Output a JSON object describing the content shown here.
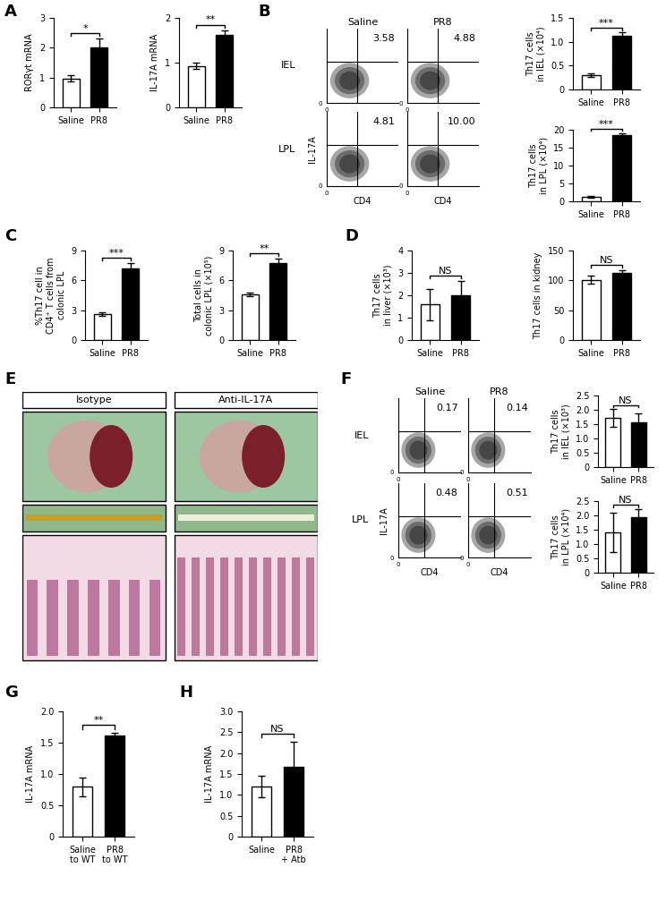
{
  "chart_data": {
    "type": "multi_panel",
    "panels": [
      {
        "label": "A",
        "bar_charts": [
          {
            "type": "bar",
            "y_label": "RORγt mRNA",
            "categories": [
              "Saline",
              "PR8"
            ],
            "values": [
              0.97,
              2.0
            ],
            "errors": [
              0.1,
              0.32
            ],
            "colors": [
              "#ffffff",
              "#000000"
            ],
            "ylim": [
              0,
              3
            ],
            "yticks": [
              0,
              1,
              2,
              3
            ],
            "significance": "*"
          },
          {
            "type": "bar",
            "y_label": "IL-17A mRNA",
            "categories": [
              "Saline",
              "PR8"
            ],
            "values": [
              0.93,
              1.63
            ],
            "errors": [
              0.07,
              0.1
            ],
            "colors": [
              "#ffffff",
              "#000000"
            ],
            "ylim": [
              0,
              2
            ],
            "yticks": [
              0,
              1,
              2
            ],
            "significance": "**"
          }
        ]
      },
      {
        "label": "B",
        "flow": {
          "columns": [
            "Saline",
            "PR8"
          ],
          "rows": [
            "IEL",
            "LPL"
          ],
          "percent": [
            [
              3.58,
              4.88
            ],
            [
              4.81,
              10.0
            ]
          ],
          "x_label": "CD4",
          "y_label": "IL-17A",
          "axis_tick": 0
        },
        "bar_charts": [
          {
            "type": "bar",
            "y_label": "Th17 cells\nin IEL (×10⁴)",
            "categories": [
              "Saline",
              "PR8"
            ],
            "values": [
              0.3,
              1.12
            ],
            "errors": [
              0.03,
              0.08
            ],
            "colors": [
              "#ffffff",
              "#000000"
            ],
            "ylim": [
              0,
              1.5
            ],
            "yticks": [
              0,
              0.5,
              1.0,
              1.5
            ],
            "significance": "***"
          },
          {
            "type": "bar",
            "y_label": "Th17 cells\nin LPL (×10⁴)",
            "categories": [
              "Saline",
              "PR8"
            ],
            "values": [
              1.2,
              18.5
            ],
            "errors": [
              0.2,
              0.6
            ],
            "colors": [
              "#ffffff",
              "#000000"
            ],
            "ylim": [
              0,
              20
            ],
            "yticks": [
              0,
              5,
              10,
              15,
              20
            ],
            "significance": "***"
          }
        ]
      },
      {
        "label": "C",
        "bar_charts": [
          {
            "type": "bar",
            "y_label": "%Th17 cell in\nCD4⁺ T cells from\ncolonic LPL",
            "categories": [
              "Saline",
              "PR8"
            ],
            "values": [
              2.6,
              7.2
            ],
            "errors": [
              0.15,
              0.55
            ],
            "colors": [
              "#ffffff",
              "#000000"
            ],
            "ylim": [
              0,
              9
            ],
            "yticks": [
              0,
              3,
              6,
              9
            ],
            "significance": "***"
          },
          {
            "type": "bar",
            "y_label": "Total cells in\ncolonic LPL (×10⁵)",
            "categories": [
              "Saline",
              "PR8"
            ],
            "values": [
              4.6,
              7.7
            ],
            "errors": [
              0.2,
              0.5
            ],
            "colors": [
              "#ffffff",
              "#000000"
            ],
            "ylim": [
              0,
              9
            ],
            "yticks": [
              0,
              3,
              6,
              9
            ],
            "significance": "**"
          }
        ]
      },
      {
        "label": "D",
        "bar_charts": [
          {
            "type": "bar",
            "y_label": "Th17 cells\nin liver (×10³)",
            "categories": [
              "Saline",
              "PR8"
            ],
            "values": [
              1.6,
              2.0
            ],
            "errors": [
              0.7,
              0.65
            ],
            "colors": [
              "#ffffff",
              "#000000"
            ],
            "ylim": [
              0,
              4
            ],
            "yticks": [
              0,
              1,
              2,
              3,
              4
            ],
            "significance": "NS"
          },
          {
            "type": "bar",
            "y_label": "Th17 cells in kidney",
            "categories": [
              "Saline",
              "PR8"
            ],
            "values": [
              101,
              112
            ],
            "errors": [
              7,
              5
            ],
            "colors": [
              "#ffffff",
              "#000000"
            ],
            "ylim": [
              0,
              150
            ],
            "yticks": [
              0,
              50,
              100,
              150
            ],
            "significance": "NS"
          }
        ]
      },
      {
        "label": "E",
        "images": {
          "columns": [
            "Isotype",
            "Anti-IL-17A"
          ]
        }
      },
      {
        "label": "F",
        "flow": {
          "columns": [
            "Saline",
            "PR8"
          ],
          "rows": [
            "IEL",
            "LPL"
          ],
          "percent": [
            [
              0.17,
              0.14
            ],
            [
              0.48,
              0.51
            ]
          ],
          "x_label": "CD4",
          "y_label": "IL-17A",
          "axis_tick": 0
        },
        "bar_charts": [
          {
            "type": "bar",
            "y_label": "Th17 cells\nin IEL (×10³)",
            "categories": [
              "Saline",
              "PR8"
            ],
            "values": [
              1.72,
              1.57
            ],
            "errors": [
              0.3,
              0.3
            ],
            "colors": [
              "#ffffff",
              "#000000"
            ],
            "ylim": [
              0,
              2.5
            ],
            "yticks": [
              0,
              0.5,
              1.0,
              1.5,
              2.0,
              2.5
            ],
            "significance": "NS"
          },
          {
            "type": "bar",
            "y_label": "Th17 cells\nin LPL (×10⁴)",
            "categories": [
              "Saline",
              "PR8"
            ],
            "values": [
              1.4,
              1.95
            ],
            "errors": [
              0.68,
              0.27
            ],
            "colors": [
              "#ffffff",
              "#000000"
            ],
            "ylim": [
              0,
              2.5
            ],
            "yticks": [
              0,
              0.5,
              1.0,
              1.5,
              2.0,
              2.5
            ],
            "significance": "NS"
          }
        ]
      },
      {
        "label": "G",
        "bar_charts": [
          {
            "type": "bar",
            "y_label": "IL-17A mRNA",
            "categories": [
              "Saline\nto WT",
              "PR8\nto WT"
            ],
            "values": [
              0.8,
              1.62
            ],
            "errors": [
              0.15,
              0.04
            ],
            "colors": [
              "#ffffff",
              "#000000"
            ],
            "ylim": [
              0,
              2.0
            ],
            "yticks": [
              0,
              0.5,
              1.0,
              1.5,
              2.0
            ],
            "significance": "**"
          }
        ]
      },
      {
        "label": "H",
        "bar_charts": [
          {
            "type": "bar",
            "y_label": "IL-17A mRNA",
            "categories": [
              "Saline",
              "PR8\n+ Atb"
            ],
            "values": [
              1.2,
              1.68
            ],
            "errors": [
              0.25,
              0.6
            ],
            "colors": [
              "#ffffff",
              "#000000"
            ],
            "ylim": [
              0,
              3.0
            ],
            "yticks": [
              0,
              0.5,
              1.0,
              1.5,
              2.0,
              2.5,
              3.0
            ],
            "significance": "NS"
          }
        ]
      }
    ]
  }
}
